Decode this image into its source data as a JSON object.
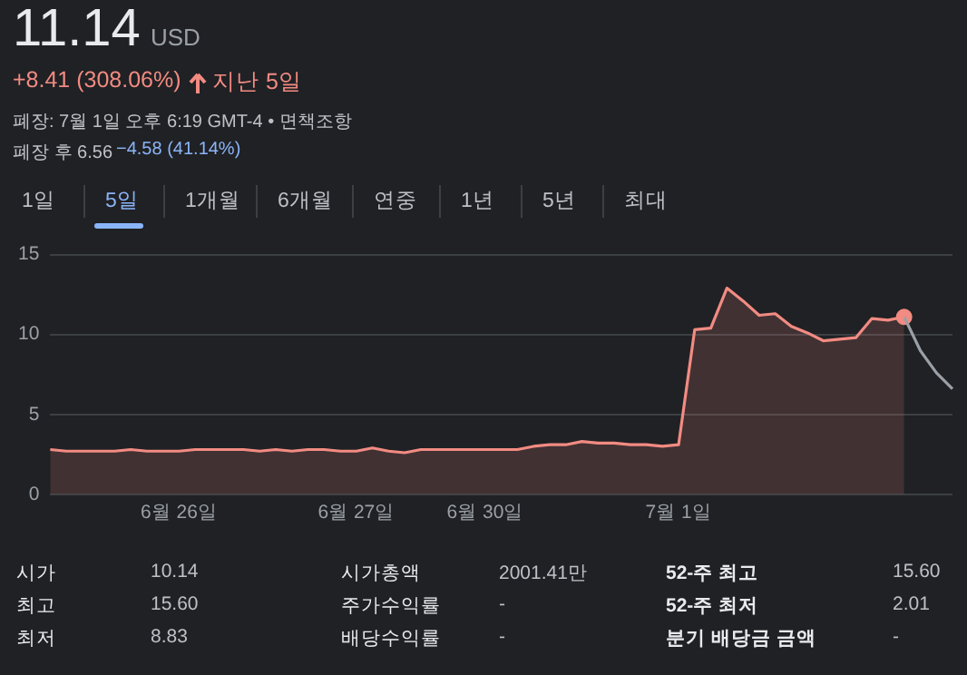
{
  "chart_data": {
    "type": "area",
    "title": "11.14",
    "annotations": [
      "USD",
      "+8.41 (308.06%)",
      "지난 5일",
      "폐장: 7월 1일 오후 6:19 GMT-4 • 면책조항",
      "폐장 후 6.56",
      "−4.58 (41.14%)",
      "1일",
      "5일",
      "1개월",
      "6개월",
      "연중",
      "1년",
      "5년",
      "최대",
      "시가",
      "10.14",
      "시가총액",
      "2001.41만",
      "52-주 최고",
      "15.60",
      "최고",
      "15.60",
      "주가수익률",
      "-",
      "52-주 최저",
      "2.01",
      "최저",
      "8.83",
      "배당수익률",
      "-",
      "분기 배당금 금액",
      "-"
    ],
    "categories": [
      null,
      null,
      null,
      null,
      null,
      null,
      null,
      null,
      "6월 26일",
      null,
      null,
      null,
      null,
      null,
      null,
      null,
      null,
      null,
      null,
      "6월 27일",
      null,
      null,
      null,
      null,
      null,
      null,
      null,
      "6월 30일",
      null,
      null,
      null,
      null,
      null,
      null,
      null,
      null,
      null,
      null,
      null,
      "7월 1일",
      null,
      null,
      null,
      null,
      null,
      null,
      null,
      null,
      null,
      null,
      null,
      null,
      null,
      null,
      null,
      null,
      null
    ],
    "series": [
      {
        "color": "#f28b82",
        "values": [
          2.8,
          2.7,
          2.7,
          2.7,
          2.7,
          2.8,
          2.7,
          2.7,
          2.7,
          2.8,
          2.8,
          2.8,
          2.8,
          2.7,
          2.8,
          2.7,
          2.8,
          2.8,
          2.7,
          2.7,
          2.9,
          2.7,
          2.6,
          2.8,
          2.8,
          2.8,
          2.8,
          2.8,
          2.8,
          2.8,
          3.0,
          3.1,
          3.1,
          3.3,
          3.2,
          3.2,
          3.1,
          3.1,
          3.0,
          3.1,
          10.3,
          10.4,
          12.9,
          12.1,
          11.2,
          11.3,
          10.5,
          10.1,
          9.6,
          9.7,
          9.8,
          11.0,
          10.9,
          11.1,
          null,
          null,
          null
        ]
      },
      {
        "type": "line",
        "color": "#9aa0a6",
        "values": [
          null,
          null,
          null,
          null,
          null,
          null,
          null,
          null,
          null,
          null,
          null,
          null,
          null,
          null,
          null,
          null,
          null,
          null,
          null,
          null,
          null,
          null,
          null,
          null,
          null,
          null,
          null,
          null,
          null,
          null,
          null,
          null,
          null,
          null,
          null,
          null,
          null,
          null,
          null,
          null,
          null,
          null,
          null,
          null,
          null,
          null,
          null,
          null,
          null,
          null,
          null,
          null,
          null,
          11.1,
          9.0,
          7.6,
          6.6
        ]
      },
      {
        "type": "scatter",
        "color": "#f28b82",
        "marker": "circle",
        "values": [
          null,
          null,
          null,
          null,
          null,
          null,
          null,
          null,
          null,
          null,
          null,
          null,
          null,
          null,
          null,
          null,
          null,
          null,
          null,
          null,
          null,
          null,
          null,
          null,
          null,
          null,
          null,
          null,
          null,
          null,
          null,
          null,
          null,
          null,
          null,
          null,
          null,
          null,
          null,
          null,
          null,
          null,
          null,
          null,
          null,
          null,
          null,
          null,
          null,
          null,
          null,
          null,
          null,
          11.1,
          null,
          null,
          null
        ]
      }
    ],
    "ylim": [
      0,
      15
    ],
    "yticks": [
      0,
      5,
      10,
      15
    ],
    "grid": "y"
  }
}
